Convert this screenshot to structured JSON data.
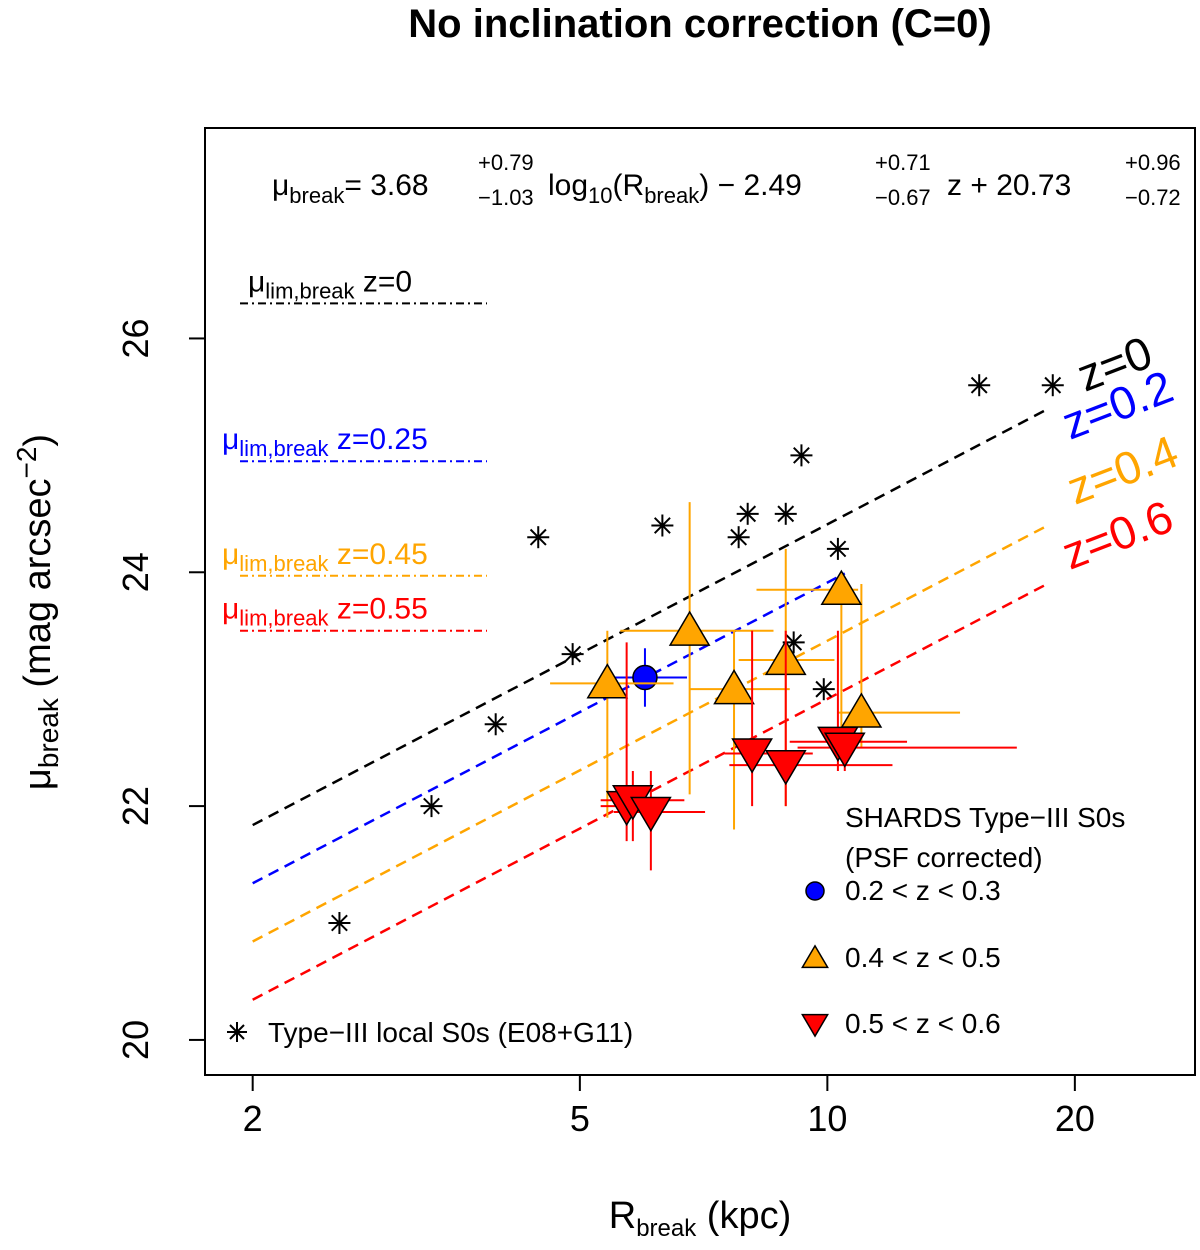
{
  "chart_data": {
    "type": "scatter",
    "title": "No inclination correction (C=0)",
    "xlabel": {
      "main": "R",
      "sub": "break",
      "rest": " (kpc)"
    },
    "ylabel": {
      "main": "μ",
      "sub": "break",
      "rest": " (mag arcsec",
      "sup": "−2",
      "close": ")"
    },
    "x_scale": "log",
    "xlim": [
      1.75,
      28
    ],
    "ylim": [
      19.7,
      27.8
    ],
    "xticks": [
      2,
      5,
      10,
      20
    ],
    "yticks": [
      20,
      22,
      24,
      26
    ],
    "equation": {
      "lhs": "μ",
      "lhs_sub": "break",
      "eq": "= ",
      "a": "3.68",
      "a_up": "+0.79",
      "a_dn": "−1.03",
      "t1": " log",
      "t1_sub": "10",
      "t1_rest": "(R",
      "t1_sub2": "break",
      "t1_close": ")",
      "minus": "− ",
      "b": "2.49",
      "b_up": "+0.71",
      "b_dn": "−0.67",
      "t2": " z + ",
      "c": "20.73",
      "c_up": "+0.96",
      "c_dn": "−0.72"
    },
    "model": {
      "slope": 3.68,
      "zcoef": -2.49,
      "intercept": 20.73
    },
    "relations": [
      {
        "z": 0,
        "label": "z=0",
        "color": "#000000",
        "x_end": 18.5
      },
      {
        "z": 0.2,
        "label": "z=0.2",
        "color": "#0000ff",
        "x_end": 10.5
      },
      {
        "z": 0.4,
        "label": "z=0.4",
        "color": "#ffa500",
        "x_end": 18.5
      },
      {
        "z": 0.6,
        "label": "z=0.6",
        "color": "#ff0000",
        "x_end": 18.5
      }
    ],
    "limits": [
      {
        "prefix": "μ",
        "sub": "lim,break",
        "label": " z=0",
        "y": 26.3,
        "color": "#000000"
      },
      {
        "prefix": "μ",
        "sub": "lim,break",
        "label": " z=0.25",
        "y": 24.95,
        "color": "#0000ff"
      },
      {
        "prefix": "μ",
        "sub": "lim,break",
        "label": " z=0.45",
        "y": 23.97,
        "color": "#ffa500"
      },
      {
        "prefix": "μ",
        "sub": "lim,break",
        "label": " z=0.55",
        "y": 23.5,
        "color": "#ff0000"
      }
    ],
    "local": {
      "name": "Type−III local S0s (E08+G11)",
      "points": [
        [
          2.55,
          21.0
        ],
        [
          3.3,
          22.0
        ],
        [
          3.95,
          22.7
        ],
        [
          4.45,
          24.3
        ],
        [
          4.9,
          23.3
        ],
        [
          6.3,
          24.4
        ],
        [
          7.8,
          24.3
        ],
        [
          8.0,
          24.5
        ],
        [
          8.9,
          24.5
        ],
        [
          9.1,
          23.4
        ],
        [
          9.3,
          25.0
        ],
        [
          9.9,
          23.0
        ],
        [
          10.3,
          24.2
        ],
        [
          15.3,
          25.6
        ],
        [
          18.8,
          25.6
        ]
      ]
    },
    "legend_title": [
      "SHARDS Type−III S0s",
      "(PSF corrected)"
    ],
    "series": [
      {
        "name": "0.2 < z < 0.3",
        "marker": "circle",
        "color": "#0000ff",
        "points": [
          {
            "x": 6.0,
            "y": 23.1,
            "xlo": 5.5,
            "xhi": 6.75,
            "ylo": 22.85,
            "yhi": 23.35
          }
        ]
      },
      {
        "name": "0.4 < z < 0.5",
        "marker": "triangle-up",
        "color": "#ffa500",
        "points": [
          {
            "x": 5.4,
            "y": 23.05,
            "xlo": 4.6,
            "xhi": 6.5,
            "ylo": 21.9,
            "yhi": 23.5
          },
          {
            "x": 6.8,
            "y": 23.5,
            "xlo": 5.6,
            "xhi": 8.6,
            "ylo": 22.1,
            "yhi": 24.6
          },
          {
            "x": 7.7,
            "y": 23.0,
            "xlo": 6.8,
            "xhi": 9.0,
            "ylo": 21.8,
            "yhi": 23.5
          },
          {
            "x": 8.9,
            "y": 23.25,
            "xlo": 7.8,
            "xhi": 10.2,
            "ylo": 22.0,
            "yhi": 24.2
          },
          {
            "x": 10.4,
            "y": 23.85,
            "xlo": 8.2,
            "xhi": 10.9,
            "ylo": 22.5,
            "yhi": 23.9
          },
          {
            "x": 11.0,
            "y": 22.8,
            "xlo": 10.3,
            "xhi": 14.5,
            "ylo": 22.5,
            "yhi": 23.9
          }
        ]
      },
      {
        "name": "0.5 < z < 0.6",
        "marker": "triangle-down",
        "color": "#ff0000",
        "points": [
          {
            "x": 5.7,
            "y": 22.0,
            "xlo": 5.3,
            "xhi": 6.3,
            "ylo": 21.7,
            "yhi": 23.4
          },
          {
            "x": 5.8,
            "y": 22.05,
            "xlo": 5.3,
            "xhi": 6.7,
            "ylo": 21.7,
            "yhi": 22.3
          },
          {
            "x": 6.1,
            "y": 21.95,
            "xlo": 5.5,
            "xhi": 7.1,
            "ylo": 21.45,
            "yhi": 22.3
          },
          {
            "x": 8.1,
            "y": 22.45,
            "xlo": 7.5,
            "xhi": 9.6,
            "ylo": 22.0,
            "yhi": 23.5
          },
          {
            "x": 8.9,
            "y": 22.35,
            "xlo": 7.6,
            "xhi": 12.0,
            "ylo": 22.0,
            "yhi": 23.5
          },
          {
            "x": 10.3,
            "y": 22.55,
            "xlo": 9.0,
            "xhi": 12.5,
            "ylo": 22.3,
            "yhi": 23.5
          },
          {
            "x": 10.5,
            "y": 22.5,
            "xlo": 9.2,
            "xhi": 17.0,
            "ylo": 22.3,
            "yhi": 22.6
          }
        ]
      }
    ]
  }
}
